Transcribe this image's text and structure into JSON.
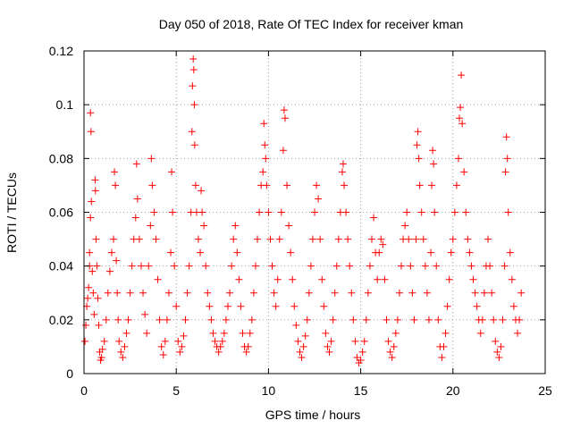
{
  "chart_data": {
    "type": "scatter",
    "title": "Day 050 of 2018, Rate Of TEC Index for receiver kman",
    "xlabel": "GPS time / hours",
    "ylabel": "ROTI / TECUs",
    "xlim": [
      0,
      25
    ],
    "ylim": [
      0,
      0.12
    ],
    "xticks": [
      0,
      5,
      10,
      15,
      20,
      25
    ],
    "yticks": [
      0,
      0.02,
      0.04,
      0.06,
      0.08,
      0.1,
      0.12
    ],
    "xtick_labels": [
      "0",
      "5",
      "10",
      "15",
      "20",
      "25"
    ],
    "ytick_labels": [
      "0",
      "0.02",
      "0.04",
      "0.06",
      "0.08",
      "0.1",
      "0.12"
    ],
    "grid": true,
    "marker": "plus",
    "color": "#ff0000",
    "series": [
      {
        "name": "ROTI",
        "points": [
          [
            0.05,
            0.012
          ],
          [
            0.1,
            0.018
          ],
          [
            0.15,
            0.025
          ],
          [
            0.2,
            0.028
          ],
          [
            0.25,
            0.032
          ],
          [
            0.3,
            0.04
          ],
          [
            0.3,
            0.045
          ],
          [
            0.35,
            0.058
          ],
          [
            0.35,
            0.097
          ],
          [
            0.38,
            0.09
          ],
          [
            0.4,
            0.064
          ],
          [
            0.45,
            0.038
          ],
          [
            0.5,
            0.03
          ],
          [
            0.55,
            0.022
          ],
          [
            0.6,
            0.072
          ],
          [
            0.62,
            0.068
          ],
          [
            0.65,
            0.05
          ],
          [
            0.7,
            0.04
          ],
          [
            0.75,
            0.028
          ],
          [
            0.8,
            0.018
          ],
          [
            0.85,
            0.008
          ],
          [
            0.9,
            0.005
          ],
          [
            0.95,
            0.006
          ],
          [
            1.0,
            0.009
          ],
          [
            1.1,
            0.012
          ],
          [
            1.2,
            0.02
          ],
          [
            1.3,
            0.03
          ],
          [
            1.4,
            0.038
          ],
          [
            1.5,
            0.045
          ],
          [
            1.6,
            0.05
          ],
          [
            1.65,
            0.075
          ],
          [
            1.7,
            0.07
          ],
          [
            1.75,
            0.042
          ],
          [
            1.8,
            0.03
          ],
          [
            1.85,
            0.02
          ],
          [
            1.9,
            0.012
          ],
          [
            2.0,
            0.008
          ],
          [
            2.1,
            0.006
          ],
          [
            2.2,
            0.01
          ],
          [
            2.3,
            0.015
          ],
          [
            2.4,
            0.02
          ],
          [
            2.5,
            0.03
          ],
          [
            2.6,
            0.04
          ],
          [
            2.7,
            0.05
          ],
          [
            2.8,
            0.058
          ],
          [
            2.85,
            0.078
          ],
          [
            2.9,
            0.065
          ],
          [
            3.0,
            0.05
          ],
          [
            3.1,
            0.04
          ],
          [
            3.2,
            0.03
          ],
          [
            3.3,
            0.022
          ],
          [
            3.4,
            0.015
          ],
          [
            3.5,
            0.04
          ],
          [
            3.6,
            0.055
          ],
          [
            3.65,
            0.08
          ],
          [
            3.7,
            0.07
          ],
          [
            3.8,
            0.06
          ],
          [
            3.9,
            0.05
          ],
          [
            4.0,
            0.035
          ],
          [
            4.1,
            0.02
          ],
          [
            4.2,
            0.01
          ],
          [
            4.3,
            0.007
          ],
          [
            4.4,
            0.012
          ],
          [
            4.5,
            0.02
          ],
          [
            4.6,
            0.03
          ],
          [
            4.7,
            0.045
          ],
          [
            4.75,
            0.075
          ],
          [
            4.8,
            0.06
          ],
          [
            4.9,
            0.04
          ],
          [
            5.0,
            0.025
          ],
          [
            5.1,
            0.012
          ],
          [
            5.2,
            0.008
          ],
          [
            5.3,
            0.01
          ],
          [
            5.4,
            0.014
          ],
          [
            5.5,
            0.02
          ],
          [
            5.6,
            0.03
          ],
          [
            5.7,
            0.04
          ],
          [
            5.8,
            0.06
          ],
          [
            5.85,
            0.09
          ],
          [
            5.88,
            0.107
          ],
          [
            5.92,
            0.117
          ],
          [
            5.95,
            0.113
          ],
          [
            5.98,
            0.1
          ],
          [
            6.0,
            0.085
          ],
          [
            6.05,
            0.07
          ],
          [
            6.1,
            0.06
          ],
          [
            6.2,
            0.05
          ],
          [
            6.3,
            0.045
          ],
          [
            6.35,
            0.068
          ],
          [
            6.4,
            0.06
          ],
          [
            6.5,
            0.055
          ],
          [
            6.6,
            0.04
          ],
          [
            6.7,
            0.03
          ],
          [
            6.8,
            0.025
          ],
          [
            6.9,
            0.02
          ],
          [
            7.0,
            0.015
          ],
          [
            7.1,
            0.012
          ],
          [
            7.2,
            0.01
          ],
          [
            7.3,
            0.008
          ],
          [
            7.4,
            0.01
          ],
          [
            7.5,
            0.012
          ],
          [
            7.6,
            0.015
          ],
          [
            7.7,
            0.02
          ],
          [
            7.8,
            0.025
          ],
          [
            7.9,
            0.03
          ],
          [
            8.0,
            0.04
          ],
          [
            8.1,
            0.05
          ],
          [
            8.2,
            0.055
          ],
          [
            8.3,
            0.045
          ],
          [
            8.4,
            0.035
          ],
          [
            8.5,
            0.025
          ],
          [
            8.6,
            0.015
          ],
          [
            8.7,
            0.01
          ],
          [
            8.8,
            0.008
          ],
          [
            8.9,
            0.01
          ],
          [
            9.0,
            0.015
          ],
          [
            9.1,
            0.02
          ],
          [
            9.2,
            0.03
          ],
          [
            9.3,
            0.04
          ],
          [
            9.4,
            0.05
          ],
          [
            9.5,
            0.06
          ],
          [
            9.6,
            0.07
          ],
          [
            9.7,
            0.075
          ],
          [
            9.75,
            0.093
          ],
          [
            9.8,
            0.085
          ],
          [
            9.85,
            0.08
          ],
          [
            9.9,
            0.07
          ],
          [
            10.0,
            0.06
          ],
          [
            10.1,
            0.05
          ],
          [
            10.2,
            0.04
          ],
          [
            10.3,
            0.03
          ],
          [
            10.4,
            0.025
          ],
          [
            10.5,
            0.035
          ],
          [
            10.6,
            0.05
          ],
          [
            10.7,
            0.06
          ],
          [
            10.8,
            0.083
          ],
          [
            10.85,
            0.098
          ],
          [
            10.9,
            0.095
          ],
          [
            11.0,
            0.07
          ],
          [
            11.1,
            0.055
          ],
          [
            11.2,
            0.045
          ],
          [
            11.3,
            0.035
          ],
          [
            11.4,
            0.025
          ],
          [
            11.5,
            0.018
          ],
          [
            11.6,
            0.012
          ],
          [
            11.7,
            0.008
          ],
          [
            11.8,
            0.006
          ],
          [
            11.9,
            0.01
          ],
          [
            12.0,
            0.014
          ],
          [
            12.1,
            0.02
          ],
          [
            12.2,
            0.03
          ],
          [
            12.3,
            0.04
          ],
          [
            12.4,
            0.05
          ],
          [
            12.5,
            0.06
          ],
          [
            12.6,
            0.07
          ],
          [
            12.7,
            0.065
          ],
          [
            12.8,
            0.05
          ],
          [
            12.9,
            0.035
          ],
          [
            13.0,
            0.025
          ],
          [
            13.1,
            0.015
          ],
          [
            13.2,
            0.01
          ],
          [
            13.3,
            0.008
          ],
          [
            13.4,
            0.012
          ],
          [
            13.5,
            0.02
          ],
          [
            13.6,
            0.03
          ],
          [
            13.7,
            0.04
          ],
          [
            13.8,
            0.05
          ],
          [
            13.9,
            0.06
          ],
          [
            14.0,
            0.075
          ],
          [
            14.05,
            0.078
          ],
          [
            14.1,
            0.07
          ],
          [
            14.2,
            0.06
          ],
          [
            14.3,
            0.05
          ],
          [
            14.4,
            0.04
          ],
          [
            14.5,
            0.03
          ],
          [
            14.6,
            0.02
          ],
          [
            14.7,
            0.012
          ],
          [
            14.8,
            0.006
          ],
          [
            14.9,
            0.004
          ],
          [
            15.0,
            0.005
          ],
          [
            15.1,
            0.008
          ],
          [
            15.2,
            0.012
          ],
          [
            15.3,
            0.02
          ],
          [
            15.4,
            0.03
          ],
          [
            15.5,
            0.04
          ],
          [
            15.6,
            0.05
          ],
          [
            15.7,
            0.058
          ],
          [
            15.8,
            0.045
          ],
          [
            15.9,
            0.035
          ],
          [
            16.0,
            0.045
          ],
          [
            16.1,
            0.05
          ],
          [
            16.2,
            0.048
          ],
          [
            16.3,
            0.035
          ],
          [
            16.4,
            0.02
          ],
          [
            16.5,
            0.012
          ],
          [
            16.6,
            0.008
          ],
          [
            16.7,
            0.006
          ],
          [
            16.8,
            0.01
          ],
          [
            16.9,
            0.015
          ],
          [
            17.0,
            0.02
          ],
          [
            17.1,
            0.03
          ],
          [
            17.2,
            0.04
          ],
          [
            17.3,
            0.05
          ],
          [
            17.4,
            0.055
          ],
          [
            17.5,
            0.06
          ],
          [
            17.6,
            0.05
          ],
          [
            17.7,
            0.04
          ],
          [
            17.8,
            0.03
          ],
          [
            17.9,
            0.02
          ],
          [
            18.0,
            0.05
          ],
          [
            18.05,
            0.085
          ],
          [
            18.1,
            0.09
          ],
          [
            18.15,
            0.08
          ],
          [
            18.2,
            0.07
          ],
          [
            18.3,
            0.06
          ],
          [
            18.4,
            0.05
          ],
          [
            18.5,
            0.04
          ],
          [
            18.6,
            0.03
          ],
          [
            18.7,
            0.02
          ],
          [
            18.8,
            0.045
          ],
          [
            18.85,
            0.07
          ],
          [
            18.9,
            0.083
          ],
          [
            18.95,
            0.078
          ],
          [
            19.0,
            0.06
          ],
          [
            19.1,
            0.04
          ],
          [
            19.2,
            0.02
          ],
          [
            19.3,
            0.01
          ],
          [
            19.4,
            0.006
          ],
          [
            19.5,
            0.01
          ],
          [
            19.6,
            0.015
          ],
          [
            19.7,
            0.025
          ],
          [
            19.8,
            0.035
          ],
          [
            19.9,
            0.045
          ],
          [
            20.0,
            0.05
          ],
          [
            20.1,
            0.06
          ],
          [
            20.2,
            0.07
          ],
          [
            20.3,
            0.08
          ],
          [
            20.35,
            0.095
          ],
          [
            20.4,
            0.099
          ],
          [
            20.45,
            0.111
          ],
          [
            20.5,
            0.093
          ],
          [
            20.6,
            0.075
          ],
          [
            20.7,
            0.06
          ],
          [
            20.8,
            0.05
          ],
          [
            20.9,
            0.045
          ],
          [
            21.0,
            0.04
          ],
          [
            21.1,
            0.035
          ],
          [
            21.2,
            0.03
          ],
          [
            21.3,
            0.025
          ],
          [
            21.4,
            0.02
          ],
          [
            21.5,
            0.015
          ],
          [
            21.6,
            0.02
          ],
          [
            21.7,
            0.03
          ],
          [
            21.8,
            0.04
          ],
          [
            21.9,
            0.05
          ],
          [
            22.0,
            0.04
          ],
          [
            22.1,
            0.03
          ],
          [
            22.2,
            0.02
          ],
          [
            22.3,
            0.012
          ],
          [
            22.4,
            0.008
          ],
          [
            22.5,
            0.006
          ],
          [
            22.6,
            0.01
          ],
          [
            22.7,
            0.02
          ],
          [
            22.8,
            0.04
          ],
          [
            22.85,
            0.075
          ],
          [
            22.9,
            0.088
          ],
          [
            22.95,
            0.08
          ],
          [
            23.0,
            0.06
          ],
          [
            23.1,
            0.045
          ],
          [
            23.2,
            0.035
          ],
          [
            23.3,
            0.025
          ],
          [
            23.4,
            0.02
          ],
          [
            23.5,
            0.015
          ],
          [
            23.6,
            0.02
          ],
          [
            23.7,
            0.03
          ]
        ]
      }
    ]
  }
}
